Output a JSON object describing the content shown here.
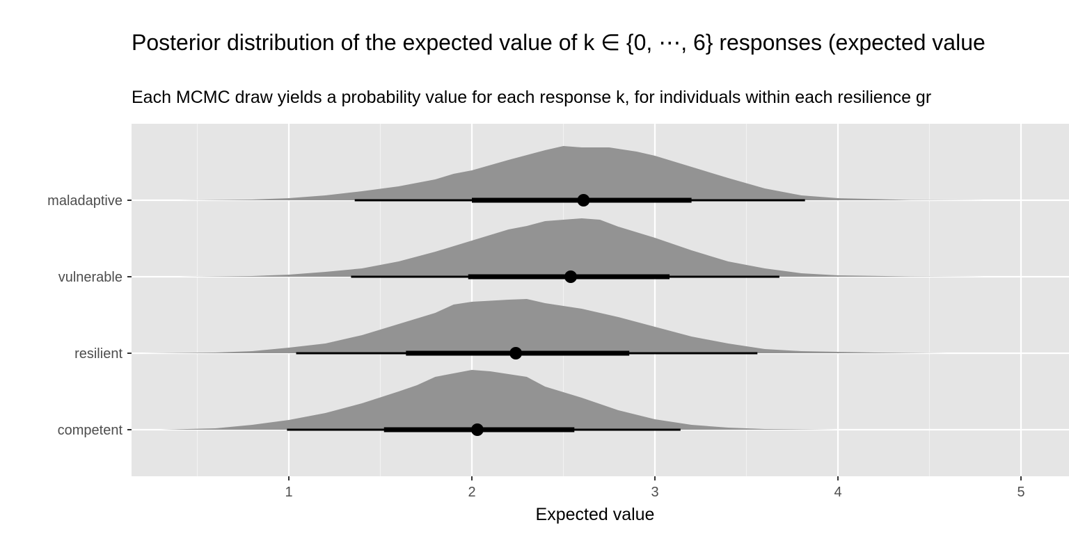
{
  "chart_data": {
    "type": "area",
    "title": "Posterior distribution of the expected value of k ∈ {0, ⋯, 6} responses (expected value",
    "subtitle": "Each MCMC draw yields a probability value for each response k, for individuals within each resilience gr",
    "xlabel": "Expected value",
    "ylabel": "",
    "xlim": [
      0.1,
      5.2
    ],
    "xticks": [
      1,
      2,
      3,
      4,
      5
    ],
    "grid": true,
    "categories": [
      "maladaptive",
      "vulnerable",
      "resilient",
      "competent"
    ],
    "series": [
      {
        "name": "maladaptive",
        "point": 2.61,
        "interval_66": [
          2.0,
          3.2
        ],
        "interval_95": [
          1.36,
          3.82
        ],
        "density": [
          [
            0.4,
            0
          ],
          [
            0.8,
            0.01
          ],
          [
            1.0,
            0.03
          ],
          [
            1.2,
            0.07
          ],
          [
            1.4,
            0.13
          ],
          [
            1.6,
            0.2
          ],
          [
            1.8,
            0.3
          ],
          [
            1.9,
            0.38
          ],
          [
            2.0,
            0.43
          ],
          [
            2.2,
            0.58
          ],
          [
            2.4,
            0.72
          ],
          [
            2.5,
            0.78
          ],
          [
            2.6,
            0.76
          ],
          [
            2.75,
            0.76
          ],
          [
            2.9,
            0.7
          ],
          [
            3.0,
            0.64
          ],
          [
            3.2,
            0.48
          ],
          [
            3.4,
            0.32
          ],
          [
            3.6,
            0.17
          ],
          [
            3.8,
            0.07
          ],
          [
            4.0,
            0.03
          ],
          [
            4.4,
            0.005
          ],
          [
            4.8,
            0
          ]
        ]
      },
      {
        "name": "vulnerable",
        "point": 2.54,
        "interval_66": [
          1.98,
          3.08
        ],
        "interval_95": [
          1.34,
          3.68
        ],
        "density": [
          [
            0.4,
            0
          ],
          [
            0.8,
            0.01
          ],
          [
            1.0,
            0.03
          ],
          [
            1.2,
            0.07
          ],
          [
            1.4,
            0.12
          ],
          [
            1.6,
            0.22
          ],
          [
            1.8,
            0.36
          ],
          [
            2.0,
            0.52
          ],
          [
            2.2,
            0.68
          ],
          [
            2.3,
            0.73
          ],
          [
            2.4,
            0.8
          ],
          [
            2.5,
            0.82
          ],
          [
            2.6,
            0.84
          ],
          [
            2.7,
            0.82
          ],
          [
            2.8,
            0.72
          ],
          [
            3.0,
            0.56
          ],
          [
            3.2,
            0.38
          ],
          [
            3.4,
            0.22
          ],
          [
            3.6,
            0.12
          ],
          [
            3.8,
            0.05
          ],
          [
            4.0,
            0.02
          ],
          [
            4.4,
            0.005
          ],
          [
            4.8,
            0
          ]
        ]
      },
      {
        "name": "resilient",
        "point": 2.24,
        "interval_66": [
          1.64,
          2.86
        ],
        "interval_95": [
          1.04,
          3.56
        ],
        "density": [
          [
            0.2,
            0
          ],
          [
            0.6,
            0.01
          ],
          [
            0.8,
            0.03
          ],
          [
            1.0,
            0.08
          ],
          [
            1.2,
            0.14
          ],
          [
            1.4,
            0.26
          ],
          [
            1.6,
            0.42
          ],
          [
            1.8,
            0.58
          ],
          [
            1.9,
            0.7
          ],
          [
            2.0,
            0.74
          ],
          [
            2.2,
            0.77
          ],
          [
            2.3,
            0.78
          ],
          [
            2.4,
            0.72
          ],
          [
            2.6,
            0.64
          ],
          [
            2.8,
            0.52
          ],
          [
            3.0,
            0.38
          ],
          [
            3.2,
            0.24
          ],
          [
            3.4,
            0.14
          ],
          [
            3.6,
            0.06
          ],
          [
            3.8,
            0.03
          ],
          [
            4.2,
            0.01
          ],
          [
            4.6,
            0
          ]
        ]
      },
      {
        "name": "competent",
        "point": 2.03,
        "interval_66": [
          1.52,
          2.56
        ],
        "interval_95": [
          0.99,
          3.14
        ],
        "density": [
          [
            0.3,
            0
          ],
          [
            0.6,
            0.02
          ],
          [
            0.8,
            0.07
          ],
          [
            1.0,
            0.14
          ],
          [
            1.2,
            0.24
          ],
          [
            1.4,
            0.38
          ],
          [
            1.6,
            0.55
          ],
          [
            1.7,
            0.64
          ],
          [
            1.8,
            0.76
          ],
          [
            2.0,
            0.86
          ],
          [
            2.1,
            0.84
          ],
          [
            2.2,
            0.8
          ],
          [
            2.3,
            0.76
          ],
          [
            2.4,
            0.62
          ],
          [
            2.6,
            0.46
          ],
          [
            2.8,
            0.28
          ],
          [
            3.0,
            0.15
          ],
          [
            3.2,
            0.07
          ],
          [
            3.4,
            0.03
          ],
          [
            3.6,
            0.01
          ],
          [
            4.0,
            0
          ]
        ]
      }
    ]
  }
}
